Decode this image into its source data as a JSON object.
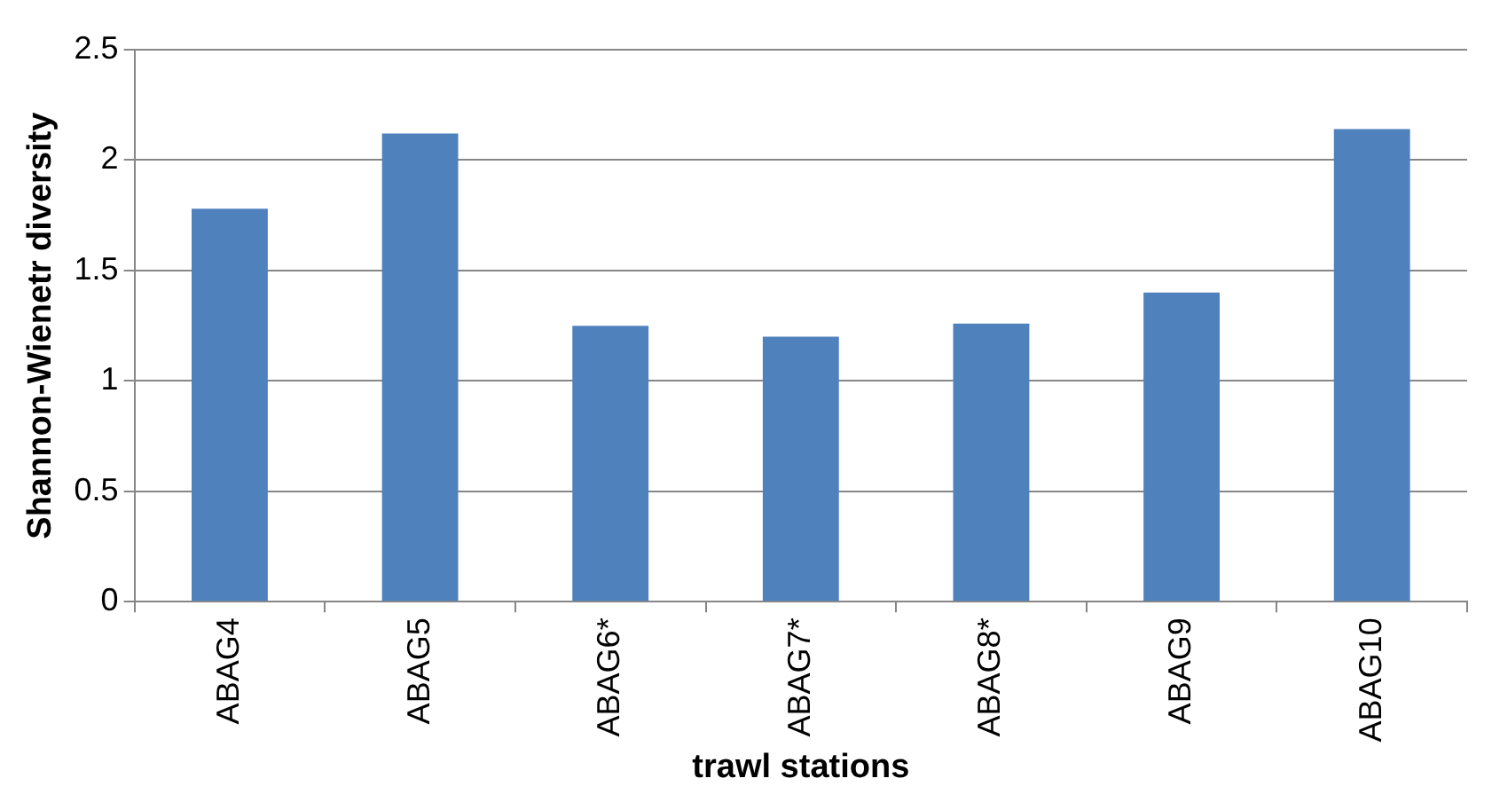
{
  "chart_data": {
    "type": "bar",
    "xlabel": "trawl stations",
    "ylabel": "Shannon-Wienetr diversity",
    "categories": [
      "ABAG4",
      "ABAG5",
      "ABAG6*",
      "ABAG7*",
      "ABAG8*",
      "ABAG9",
      "ABAG10"
    ],
    "values": [
      1.78,
      2.12,
      1.25,
      1.2,
      1.26,
      1.4,
      2.14
    ],
    "color": "#4f81bd",
    "ylim": [
      0,
      2.5
    ],
    "yticks": [
      0,
      0.5,
      1,
      1.5,
      2,
      2.5
    ],
    "grid": "y"
  }
}
